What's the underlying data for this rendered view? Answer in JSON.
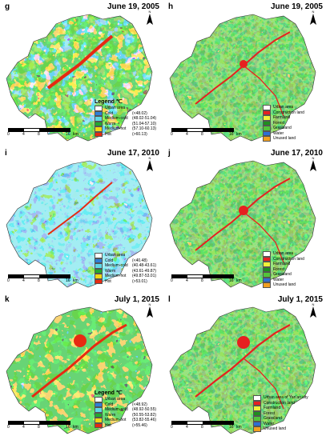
{
  "panels": [
    {
      "letter": "g",
      "date": "June 19, 2005",
      "type": "temp",
      "legend_title": "Legend ℃",
      "items": [
        {
          "label": "Urban area",
          "range": "",
          "color": "#ffffff"
        },
        {
          "label": "Cold",
          "range": "(<48.02)",
          "color": "#2f7fd6"
        },
        {
          "label": "Medium-cold",
          "range": "(48.02-51.04)",
          "color": "#5fd8e6"
        },
        {
          "label": "Warm",
          "range": "(51.04-57.10)",
          "color": "#23a92f"
        },
        {
          "label": "Medium-hot",
          "range": "(57.10-60.13)",
          "color": "#f2d615"
        },
        {
          "label": "Hot",
          "range": "(>60.13)",
          "color": "#e62a12"
        }
      ]
    },
    {
      "letter": "h",
      "date": "June 19, 2005",
      "type": "land",
      "legend_title": "",
      "items": [
        {
          "label": "Urban area",
          "color": "#ffffff"
        },
        {
          "label": "Construction land",
          "color": "#e62020"
        },
        {
          "label": "Farmland",
          "color": "#f0f23a"
        },
        {
          "label": "Forest",
          "color": "#1f8f1f"
        },
        {
          "label": "Grassland",
          "color": "#52c43a"
        },
        {
          "label": "Water",
          "color": "#2d6fd6"
        },
        {
          "label": "Unused land",
          "color": "#f2a020"
        }
      ]
    },
    {
      "letter": "i",
      "date": "June 17, 2010",
      "type": "temp",
      "legend_title": "",
      "items": [
        {
          "label": "Urban area",
          "range": "",
          "color": "#ffffff"
        },
        {
          "label": "Cold",
          "range": "(<40.48)",
          "color": "#2f7fd6"
        },
        {
          "label": "Medium-cold",
          "range": "(40.48-43.61)",
          "color": "#5fd8e6"
        },
        {
          "label": "Warm",
          "range": "(43.61-49.87)",
          "color": "#23a92f"
        },
        {
          "label": "Medium-hot",
          "range": "(49.87-53.01)",
          "color": "#f2d615"
        },
        {
          "label": "Hot",
          "range": "(>53.01)",
          "color": "#e62a12"
        }
      ]
    },
    {
      "letter": "j",
      "date": "June 17, 2010",
      "type": "land",
      "legend_title": "",
      "items": [
        {
          "label": "Urban area",
          "color": "#ffffff"
        },
        {
          "label": "Construction land",
          "color": "#e62020"
        },
        {
          "label": "Farmland",
          "color": "#f0f23a"
        },
        {
          "label": "Forest",
          "color": "#1f8f1f"
        },
        {
          "label": "Grassland",
          "color": "#52c43a"
        },
        {
          "label": "Water",
          "color": "#2d6fd6"
        },
        {
          "label": "Unused land",
          "color": "#f2a020"
        }
      ]
    },
    {
      "letter": "k",
      "date": "July 1, 2015",
      "type": "temp",
      "legend_title": "Legend ℃",
      "items": [
        {
          "label": "Urban area",
          "range": "",
          "color": "#ffffff"
        },
        {
          "label": "Cold",
          "range": "(<48.92)",
          "color": "#2f7fd6"
        },
        {
          "label": "Medium-cold",
          "range": "(48.92-50.55)",
          "color": "#5fd8e6"
        },
        {
          "label": "Warm",
          "range": "(50.55-53.82)",
          "color": "#23a92f"
        },
        {
          "label": "Medium-hot",
          "range": "(53.82-55.46)",
          "color": "#f2d615"
        },
        {
          "label": "Hot",
          "range": "(>55.46)",
          "color": "#e62a12"
        }
      ]
    },
    {
      "letter": "l",
      "date": "July 1, 2015",
      "type": "land",
      "legend_title": "",
      "items": [
        {
          "label": "Urban area of Yan'an city",
          "color": "#ffffff"
        },
        {
          "label": "Construction land",
          "color": "#e62020"
        },
        {
          "label": "Farmland",
          "color": "#f0f23a"
        },
        {
          "label": "Forest",
          "color": "#1f8f1f"
        },
        {
          "label": "Grassland",
          "color": "#52c43a"
        },
        {
          "label": "Water",
          "color": "#2d6fd6"
        },
        {
          "label": "Unused land",
          "color": "#f2a020"
        }
      ]
    }
  ],
  "scale_labels": [
    "0",
    "4",
    "8",
    "16",
    "km"
  ],
  "north_label": "N"
}
